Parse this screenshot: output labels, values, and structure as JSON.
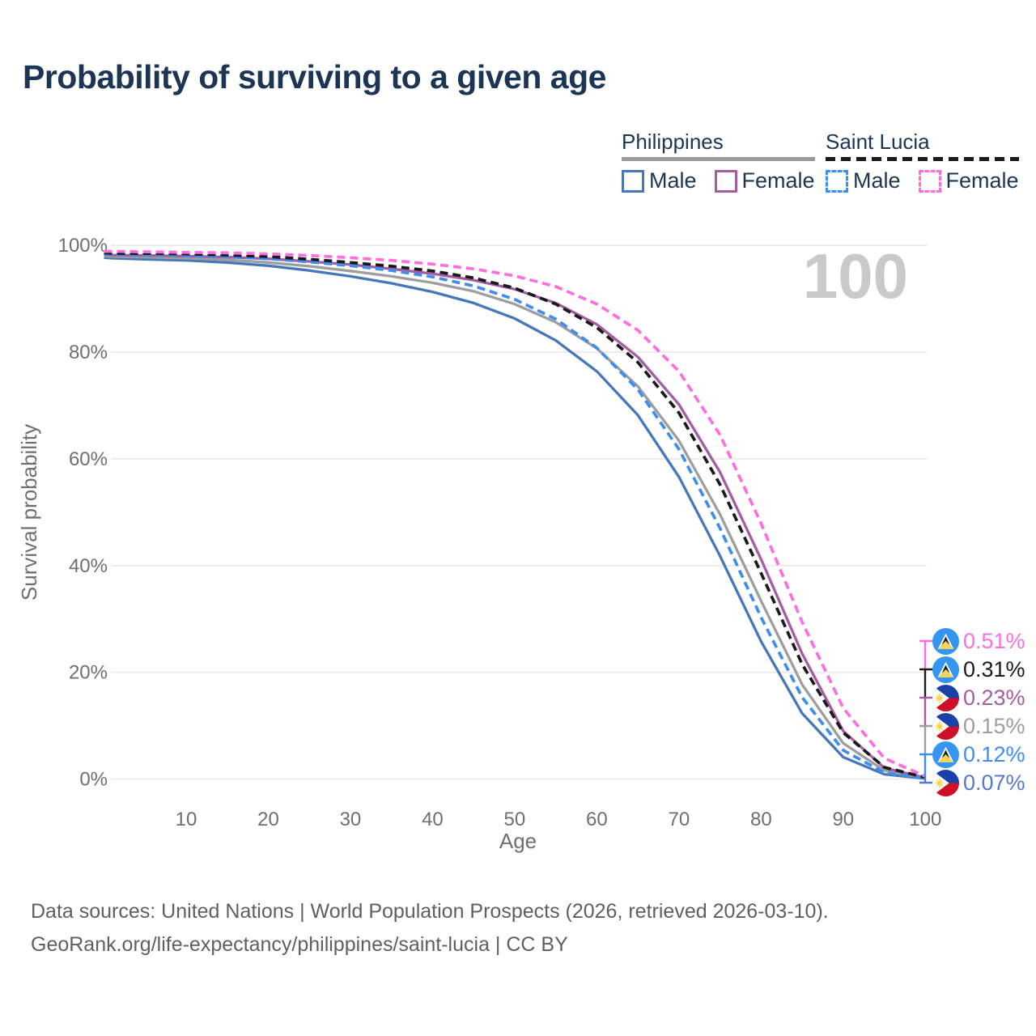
{
  "header": {
    "title": "Probability of surviving to a given age"
  },
  "legend": {
    "groups": [
      {
        "label": "Philippines",
        "underline_style": "solid",
        "underline_color": "#9a9a9a",
        "items": [
          {
            "label": "Male",
            "color": "#4678b9",
            "dash": false
          },
          {
            "label": "Female",
            "color": "#a55ca5",
            "dash": false
          }
        ]
      },
      {
        "label": "Saint Lucia",
        "underline_style": "dashed",
        "underline_color": "#1a1a1a",
        "items": [
          {
            "label": "Male",
            "color": "#3e8df2",
            "dash": true
          },
          {
            "label": "Female",
            "color": "#ff6ee0",
            "dash": true
          }
        ]
      }
    ]
  },
  "chart_data": {
    "type": "line",
    "title": "Probability of surviving to a given age",
    "xlabel": "Age",
    "ylabel": "Survival probability",
    "xlim": [
      0,
      100
    ],
    "ylim": [
      0,
      100
    ],
    "grid": "horizontal-only",
    "watermark": "100",
    "x_ticks": [
      "10",
      "20",
      "30",
      "40",
      "50",
      "60",
      "70",
      "80",
      "90",
      "100"
    ],
    "y_ticks": [
      "0%",
      "20%",
      "40%",
      "60%",
      "80%",
      "100%"
    ],
    "ages": [
      0,
      1,
      5,
      10,
      15,
      20,
      25,
      30,
      35,
      40,
      45,
      50,
      55,
      60,
      65,
      70,
      75,
      80,
      85,
      90,
      95,
      100
    ],
    "series": [
      {
        "name": "Philippines Male",
        "country": "Philippines",
        "sex": "Male",
        "style": "solid",
        "color": "#4678b9",
        "end_value": "0.07%",
        "values": [
          97.7,
          97.6,
          97.4,
          97.2,
          96.8,
          96.2,
          95.3,
          94.2,
          92.9,
          91.3,
          89.2,
          86.3,
          82.2,
          76.4,
          68.2,
          56.6,
          41.8,
          25.8,
          12.3,
          4.1,
          0.9,
          0.07
        ]
      },
      {
        "name": "Philippines Total",
        "country": "Philippines",
        "sex": "Both sexes",
        "style": "solid",
        "color": "#9e9e9e",
        "end_value": "0.15%",
        "values": [
          98.0,
          97.9,
          97.8,
          97.6,
          97.3,
          96.8,
          96.1,
          95.2,
          94.2,
          93.0,
          91.4,
          89.0,
          85.6,
          80.7,
          73.6,
          63.4,
          49.6,
          33.4,
          17.7,
          6.7,
          1.6,
          0.15
        ]
      },
      {
        "name": "Philippines Female",
        "country": "Philippines",
        "sex": "Female",
        "style": "solid",
        "color": "#a55ca5",
        "end_value": "0.23%",
        "values": [
          98.3,
          98.2,
          98.1,
          98.0,
          97.8,
          97.5,
          97.0,
          96.4,
          95.6,
          94.7,
          93.5,
          91.8,
          89.2,
          85.2,
          79.1,
          70.2,
          57.5,
          41.2,
          23.5,
          9.0,
          2.1,
          0.23
        ]
      },
      {
        "name": "Saint Lucia Male",
        "country": "Saint Lucia",
        "sex": "Male",
        "style": "dashed",
        "color": "#3e8df2",
        "end_value": "0.12%",
        "values": [
          98.4,
          98.3,
          98.2,
          98.1,
          97.9,
          97.5,
          96.9,
          96.2,
          95.3,
          94.1,
          92.4,
          89.9,
          86.2,
          80.8,
          73.0,
          61.8,
          47.0,
          30.3,
          15.3,
          5.4,
          1.2,
          0.12
        ]
      },
      {
        "name": "Saint Lucia Total",
        "country": "Saint Lucia",
        "sex": "Both sexes",
        "style": "dashed",
        "color": "#1a1a1a",
        "end_value": "0.31%",
        "values": [
          98.6,
          98.5,
          98.5,
          98.4,
          98.2,
          97.9,
          97.4,
          96.8,
          96.1,
          95.2,
          93.9,
          92.0,
          89.0,
          84.6,
          78.1,
          68.6,
          55.2,
          38.6,
          21.5,
          8.7,
          2.2,
          0.31
        ]
      },
      {
        "name": "Saint Lucia Female",
        "country": "Saint Lucia",
        "sex": "Female",
        "style": "dashed",
        "color": "#ff6ee0",
        "end_value": "0.51%",
        "values": [
          98.9,
          98.9,
          98.8,
          98.7,
          98.6,
          98.4,
          98.1,
          97.7,
          97.2,
          96.5,
          95.6,
          94.3,
          92.3,
          89.0,
          84.1,
          76.4,
          64.5,
          47.9,
          29.4,
          13.3,
          3.9,
          0.51
        ]
      }
    ],
    "end_labels": [
      {
        "value": "0.51%",
        "series": "Saint Lucia Female",
        "flag": "saint-lucia",
        "color": "#ff6ee0"
      },
      {
        "value": "0.31%",
        "series": "Saint Lucia Total",
        "flag": "saint-lucia",
        "color": "#1a1a1a"
      },
      {
        "value": "0.23%",
        "series": "Philippines Female",
        "flag": "philippines",
        "color": "#a55ca5"
      },
      {
        "value": "0.15%",
        "series": "Philippines Total",
        "flag": "philippines",
        "color": "#9e9e9e"
      },
      {
        "value": "0.12%",
        "series": "Saint Lucia Male",
        "flag": "saint-lucia",
        "color": "#3e8df2"
      },
      {
        "value": "0.07%",
        "series": "Philippines Male",
        "flag": "philippines",
        "color": "#5479ca"
      }
    ]
  },
  "footer": {
    "line1": "Data sources: United Nations | World Population Prospects (2026, retrieved 2026-03-10).",
    "line2": "GeoRank.org/life-expectancy/philippines/saint-lucia | CC BY"
  },
  "colors": {
    "title": "#1d3554",
    "axis_text": "#6f6f6f",
    "gridline": "#e9e9e9",
    "watermark": "#c9c9c9",
    "footer_text": "#5f5f5f"
  }
}
